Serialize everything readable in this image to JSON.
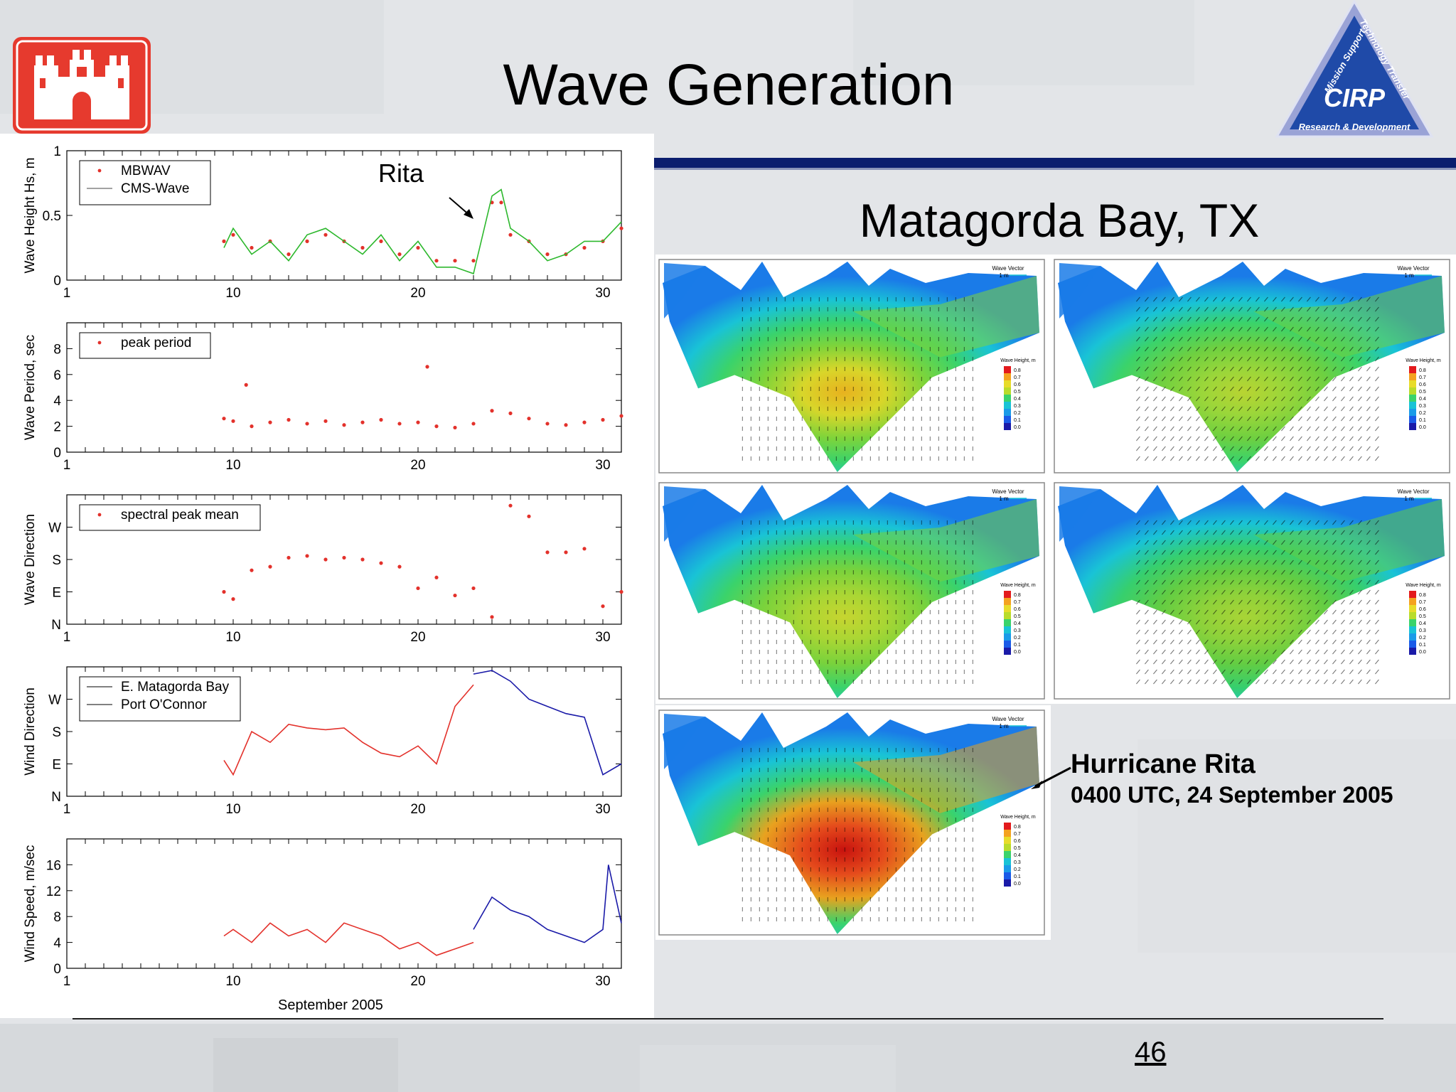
{
  "slide": {
    "title": "Wave Generation",
    "subtitle": "Matagorda Bay, TX",
    "page_number": "46",
    "caption_title": "Hurricane Rita",
    "caption_time": "0400 UTC, 24 September 2005"
  },
  "logos": {
    "usace": "castle-logo-icon",
    "cirp": {
      "name": "CIRP",
      "ring_top": "Mission Support",
      "ring_right": "Technology Transfer",
      "ring_bottom": "Research & Development"
    }
  },
  "colors": {
    "navy": "#0b1d6e",
    "red": "#e3312b",
    "green": "#2db82d",
    "blue": "#1a1aa8",
    "usace_red": "#e63a2e"
  },
  "chart_data": [
    {
      "type": "scatter",
      "ylabel": "Wave Height Hs, m",
      "ylim": [
        0,
        1
      ],
      "yticks": [
        "0",
        "0.5",
        "1"
      ],
      "xlim": [
        1,
        31
      ],
      "xticks": [
        "1",
        "10",
        "20",
        "30"
      ],
      "annotation": "Rita",
      "legend": [
        "MBWAV",
        "CMS-Wave"
      ],
      "series": [
        {
          "name": "MBWAV",
          "x": [
            9.5,
            10,
            11,
            12,
            13,
            14,
            15,
            16,
            17,
            18,
            19,
            20,
            21,
            22,
            23,
            24,
            24.5,
            25,
            26,
            27,
            28,
            29,
            30,
            31
          ],
          "values": [
            0.3,
            0.35,
            0.25,
            0.3,
            0.2,
            0.3,
            0.35,
            0.3,
            0.25,
            0.3,
            0.2,
            0.25,
            0.15,
            0.15,
            0.15,
            0.6,
            0.6,
            0.35,
            0.3,
            0.2,
            0.2,
            0.25,
            0.3,
            0.4
          ]
        },
        {
          "name": "CMS-Wave",
          "x": [
            9.5,
            10,
            11,
            12,
            13,
            14,
            15,
            16,
            17,
            18,
            19,
            20,
            21,
            22,
            23,
            24,
            24.5,
            25,
            26,
            27,
            28,
            29,
            30,
            31
          ],
          "values": [
            0.25,
            0.4,
            0.2,
            0.3,
            0.15,
            0.35,
            0.4,
            0.3,
            0.2,
            0.35,
            0.15,
            0.3,
            0.1,
            0.1,
            0.05,
            0.65,
            0.7,
            0.4,
            0.3,
            0.15,
            0.2,
            0.3,
            0.3,
            0.45
          ]
        }
      ]
    },
    {
      "type": "scatter",
      "ylabel": "Wave Period, sec",
      "ylim": [
        0,
        10
      ],
      "yticks": [
        "0",
        "2",
        "4",
        "6",
        "8"
      ],
      "xlim": [
        1,
        31
      ],
      "xticks": [
        "1",
        "10",
        "20",
        "30"
      ],
      "legend": [
        "peak period"
      ],
      "series": [
        {
          "name": "peak period",
          "x": [
            9.5,
            10,
            11,
            12,
            13,
            14,
            15,
            16,
            17,
            18,
            19,
            20,
            21,
            22,
            23,
            24,
            25,
            26,
            27,
            28,
            29,
            30,
            31,
            10.7,
            20.5
          ],
          "values": [
            2.6,
            2.4,
            2.0,
            2.3,
            2.5,
            2.2,
            2.4,
            2.1,
            2.3,
            2.5,
            2.2,
            2.3,
            2.0,
            1.9,
            2.2,
            3.2,
            3.0,
            2.6,
            2.2,
            2.1,
            2.3,
            2.5,
            2.8,
            5.2,
            6.6
          ]
        }
      ]
    },
    {
      "type": "scatter",
      "ylabel": "Wave Direction",
      "yticks": [
        "N",
        "E",
        "S",
        "W"
      ],
      "xlim": [
        1,
        31
      ],
      "xticks": [
        "1",
        "10",
        "20",
        "30"
      ],
      "legend": [
        "spectral peak mean"
      ],
      "series": [
        {
          "name": "spectral peak mean",
          "x": [
            9.5,
            10,
            11,
            12,
            13,
            14,
            15,
            16,
            17,
            18,
            19,
            20,
            21,
            22,
            23,
            24,
            25,
            26,
            27,
            28,
            29,
            30,
            31
          ],
          "values": [
            90,
            70,
            150,
            160,
            185,
            190,
            180,
            185,
            180,
            170,
            160,
            100,
            130,
            80,
            100,
            20,
            330,
            300,
            200,
            200,
            210,
            50,
            90
          ]
        }
      ]
    },
    {
      "type": "line",
      "ylabel": "Wind Direction",
      "yticks": [
        "N",
        "E",
        "S",
        "W"
      ],
      "xlim": [
        1,
        31
      ],
      "xticks": [
        "1",
        "10",
        "20",
        "30"
      ],
      "legend": [
        "E. Matagorda Bay",
        "Port O'Connor"
      ],
      "series": [
        {
          "name": "E. Matagorda Bay",
          "x": [
            9.5,
            10,
            11,
            12,
            13,
            14,
            15,
            16,
            17,
            18,
            19,
            20,
            21,
            22,
            23
          ],
          "values": [
            100,
            60,
            180,
            150,
            200,
            190,
            185,
            190,
            150,
            120,
            110,
            140,
            90,
            250,
            310
          ]
        },
        {
          "name": "Port O'Connor",
          "x": [
            23,
            24,
            25,
            26,
            27,
            28,
            29,
            30,
            31
          ],
          "values": [
            340,
            350,
            320,
            270,
            250,
            230,
            220,
            60,
            90
          ]
        }
      ]
    },
    {
      "type": "line",
      "ylabel": "Wind Speed, m/sec",
      "ylim": [
        0,
        20
      ],
      "yticks": [
        "0",
        "4",
        "8",
        "12",
        "16"
      ],
      "xlim": [
        1,
        31
      ],
      "xticks": [
        "1",
        "10",
        "20",
        "30"
      ],
      "xlabel": "September 2005",
      "series": [
        {
          "name": "E. Matagorda Bay",
          "x": [
            9.5,
            10,
            11,
            12,
            13,
            14,
            15,
            16,
            17,
            18,
            19,
            20,
            21,
            22,
            23
          ],
          "values": [
            5,
            6,
            4,
            7,
            5,
            6,
            4,
            7,
            6,
            5,
            3,
            4,
            2,
            3,
            4
          ]
        },
        {
          "name": "Port O'Connor",
          "x": [
            23,
            24,
            25,
            26,
            27,
            28,
            29,
            30,
            30.3,
            31
          ],
          "values": [
            6,
            11,
            9,
            8,
            6,
            5,
            4,
            6,
            16,
            7
          ]
        }
      ]
    }
  ],
  "maps": {
    "legend_title": "Wave Height, m",
    "legend_values": [
      "0.8",
      "0.7",
      "0.6",
      "0.5",
      "0.4",
      "0.3",
      "0.2",
      "0.1",
      "0.0"
    ],
    "vector_title": "Wave Vector",
    "vector_scale": "1 m"
  }
}
